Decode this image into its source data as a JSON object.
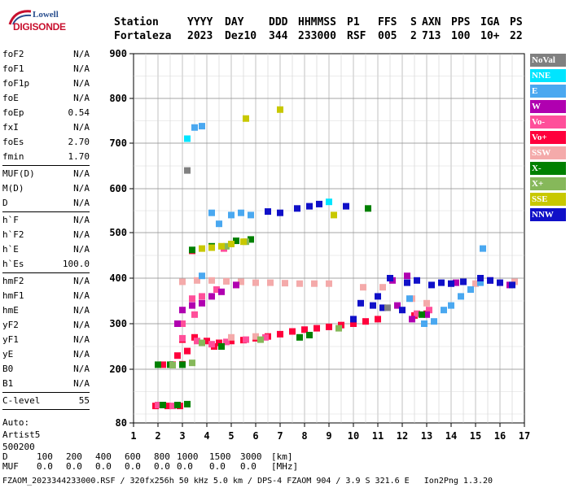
{
  "logo": {
    "line1": "Lowell",
    "line2": "DIGISONDE"
  },
  "header": {
    "labels": [
      "Station",
      "YYYY",
      "DAY",
      "DDD",
      "HHMMSS",
      "P1",
      "FFS",
      "S",
      "AXN",
      "PPS",
      "IGA",
      "PS"
    ],
    "values": [
      "Fortaleza",
      "2023",
      "Dez10",
      "344",
      "233000",
      "RSF",
      "005",
      "2",
      "713",
      "100",
      "10+",
      "22"
    ]
  },
  "params": [
    [
      {
        "label": "foF2",
        "value": "N/A"
      },
      {
        "label": "foF1",
        "value": "N/A"
      },
      {
        "label": "foF1p",
        "value": "N/A"
      },
      {
        "label": "foE",
        "value": "N/A"
      },
      {
        "label": "foEp",
        "value": "0.54"
      },
      {
        "label": "fxI",
        "value": "N/A"
      },
      {
        "label": "foEs",
        "value": "2.70"
      },
      {
        "label": "fmin",
        "value": "1.70"
      }
    ],
    [
      {
        "label": "MUF(D)",
        "value": "N/A"
      },
      {
        "label": "M(D)",
        "value": "N/A"
      },
      {
        "label": "D",
        "value": "N/A"
      }
    ],
    [
      {
        "label": "h`F",
        "value": "N/A"
      },
      {
        "label": "h`F2",
        "value": "N/A"
      },
      {
        "label": "h`E",
        "value": "N/A"
      },
      {
        "label": "h`Es",
        "value": "100.0"
      }
    ],
    [
      {
        "label": "hmF2",
        "value": "N/A"
      },
      {
        "label": "hmF1",
        "value": "N/A"
      },
      {
        "label": "hmE",
        "value": "N/A"
      },
      {
        "label": "yF2",
        "value": "N/A"
      },
      {
        "label": "yF1",
        "value": "N/A"
      },
      {
        "label": "yE",
        "value": "N/A"
      },
      {
        "label": "B0",
        "value": "N/A"
      },
      {
        "label": "B1",
        "value": "N/A"
      }
    ],
    [
      {
        "label": "C-level",
        "value": "55"
      }
    ]
  ],
  "auto": {
    "line1": "Auto:",
    "line2": "Artist5",
    "line3": "500200"
  },
  "legend": [
    {
      "label": "NoVal",
      "color": "#808080"
    },
    {
      "label": "NNE",
      "color": "#00e5ff"
    },
    {
      "label": "E",
      "color": "#4aa8f0"
    },
    {
      "label": "W",
      "color": "#b000b0"
    },
    {
      "label": "Vo-",
      "color": "#ff4f9a"
    },
    {
      "label": "Vo+",
      "color": "#ff003c"
    },
    {
      "label": "SSW",
      "color": "#f4aaaa"
    },
    {
      "label": "X-",
      "color": "#008000"
    },
    {
      "label": "X+",
      "color": "#86b85a"
    },
    {
      "label": "SSE",
      "color": "#c8c800"
    },
    {
      "label": "NNW",
      "color": "#1010c8"
    }
  ],
  "footer": {
    "d_label": "D",
    "d_values": [
      "100",
      "200",
      "400",
      "600",
      "800",
      "1000",
      "1500",
      "3000"
    ],
    "d_unit": "[km]",
    "muf_label": "MUF",
    "muf_values": [
      "0.0",
      "0.0",
      "0.0",
      "0.0",
      "0.0",
      "0.0",
      "0.0",
      "0.0"
    ],
    "muf_unit": "[MHz]",
    "info": "FZAOM_2023344233000.RSF / 320fx256h 50 kHz 5.0 km / DPS-4 FZAOM 904 / 3.9 S 321.6 E   Ion2Png 1.3.20"
  },
  "chart_data": {
    "type": "scatter",
    "title": "",
    "xlabel": "",
    "ylabel": "",
    "xlim": [
      1,
      17
    ],
    "ylim": [
      80,
      900
    ],
    "xticks": [
      "1",
      "2",
      "3",
      "4",
      "5",
      "6",
      "7",
      "8",
      "9",
      "10",
      "11",
      "12",
      "13",
      "14",
      "15",
      "16",
      "17"
    ],
    "yticks": [
      "80",
      "200",
      "300",
      "400",
      "500",
      "600",
      "700",
      "800",
      "900"
    ],
    "grid": true,
    "series": [
      {
        "name": "Vo+",
        "color": "#ff003c",
        "points": [
          [
            2.2,
            210
          ],
          [
            2.6,
            210
          ],
          [
            3.0,
            211
          ],
          [
            1.9,
            118
          ],
          [
            2.4,
            118
          ],
          [
            2.9,
            118
          ],
          [
            3.4,
            460
          ],
          [
            3.0,
            265
          ],
          [
            3.5,
            270
          ],
          [
            4.0,
            262
          ],
          [
            4.5,
            258
          ],
          [
            5.0,
            262
          ],
          [
            5.5,
            264
          ],
          [
            6.0,
            268
          ],
          [
            6.5,
            272
          ],
          [
            7.0,
            277
          ],
          [
            7.5,
            283
          ],
          [
            8.0,
            287
          ],
          [
            8.5,
            290
          ],
          [
            9.0,
            293
          ],
          [
            9.5,
            297
          ],
          [
            10.0,
            300
          ],
          [
            10.5,
            305
          ],
          [
            11.0,
            310
          ],
          [
            12.5,
            318
          ],
          [
            13.0,
            322
          ],
          [
            2.8,
            230
          ],
          [
            3.2,
            240
          ],
          [
            4.3,
            250
          ]
        ]
      },
      {
        "name": "Vo-",
        "color": "#ff4f9a",
        "points": [
          [
            2.0,
            120
          ],
          [
            2.6,
            118
          ],
          [
            3.0,
            268
          ],
          [
            3.6,
            262
          ],
          [
            4.2,
            255
          ],
          [
            4.8,
            260
          ],
          [
            5.6,
            265
          ],
          [
            6.4,
            270
          ],
          [
            3.4,
            355
          ],
          [
            3.8,
            360
          ],
          [
            4.4,
            375
          ],
          [
            5.2,
            385
          ],
          [
            4.7,
            465
          ],
          [
            3.0,
            300
          ],
          [
            3.5,
            320
          ],
          [
            12.6,
            322
          ],
          [
            13.1,
            330
          ]
        ]
      },
      {
        "name": "SSW",
        "color": "#f4aaaa",
        "points": [
          [
            3.0,
            392
          ],
          [
            3.6,
            395
          ],
          [
            4.2,
            395
          ],
          [
            4.8,
            393
          ],
          [
            5.4,
            392
          ],
          [
            6.0,
            390
          ],
          [
            6.6,
            390
          ],
          [
            7.2,
            389
          ],
          [
            7.8,
            388
          ],
          [
            8.4,
            388
          ],
          [
            9.0,
            388
          ],
          [
            10.4,
            380
          ],
          [
            11.2,
            380
          ],
          [
            12.4,
            355
          ],
          [
            13.0,
            345
          ],
          [
            14.0,
            388
          ],
          [
            15.0,
            388
          ],
          [
            16.0,
            390
          ],
          [
            16.6,
            392
          ],
          [
            5.0,
            270
          ],
          [
            6.0,
            272
          ]
        ]
      },
      {
        "name": "W",
        "color": "#b000b0",
        "points": [
          [
            3.0,
            330
          ],
          [
            3.4,
            340
          ],
          [
            3.8,
            345
          ],
          [
            4.2,
            360
          ],
          [
            4.6,
            370
          ],
          [
            5.2,
            385
          ],
          [
            2.8,
            300
          ],
          [
            11.8,
            340
          ],
          [
            12.4,
            310
          ],
          [
            13.0,
            320
          ],
          [
            11.6,
            395
          ],
          [
            12.2,
            405
          ],
          [
            14.2,
            390
          ],
          [
            15.6,
            395
          ],
          [
            16.4,
            385
          ]
        ]
      },
      {
        "name": "X-",
        "color": "#008000",
        "points": [
          [
            2.0,
            210
          ],
          [
            2.5,
            210
          ],
          [
            3.0,
            210
          ],
          [
            2.2,
            120
          ],
          [
            2.8,
            120
          ],
          [
            3.2,
            122
          ],
          [
            3.4,
            462
          ],
          [
            4.2,
            470
          ],
          [
            5.2,
            482
          ],
          [
            5.8,
            485
          ],
          [
            4.6,
            250
          ],
          [
            7.8,
            270
          ],
          [
            8.2,
            275
          ],
          [
            10.6,
            555
          ],
          [
            12.8,
            320
          ]
        ]
      },
      {
        "name": "X+",
        "color": "#86b85a",
        "points": [
          [
            2.6,
            209
          ],
          [
            3.4,
            214
          ],
          [
            4.8,
            470
          ],
          [
            5.6,
            480
          ],
          [
            3.8,
            258
          ],
          [
            6.2,
            265
          ],
          [
            9.4,
            290
          ]
        ]
      },
      {
        "name": "SSE",
        "color": "#c8c800",
        "points": [
          [
            3.8,
            465
          ],
          [
            4.2,
            467
          ],
          [
            4.6,
            470
          ],
          [
            5.0,
            475
          ],
          [
            5.5,
            480
          ],
          [
            5.6,
            755
          ],
          [
            7.0,
            775
          ],
          [
            9.2,
            540
          ]
        ]
      },
      {
        "name": "E",
        "color": "#4aa8f0",
        "points": [
          [
            3.5,
            735
          ],
          [
            3.8,
            738
          ],
          [
            4.2,
            545
          ],
          [
            4.5,
            520
          ],
          [
            5.0,
            540
          ],
          [
            5.4,
            545
          ],
          [
            5.8,
            540
          ],
          [
            12.3,
            355
          ],
          [
            12.9,
            300
          ],
          [
            13.3,
            305
          ],
          [
            13.7,
            330
          ],
          [
            14.0,
            340
          ],
          [
            14.4,
            360
          ],
          [
            14.8,
            375
          ],
          [
            15.2,
            390
          ],
          [
            15.3,
            465
          ],
          [
            3.8,
            405
          ]
        ]
      },
      {
        "name": "NNE",
        "color": "#00e5ff",
        "points": [
          [
            3.2,
            710
          ],
          [
            9.0,
            570
          ]
        ]
      },
      {
        "name": "NNW",
        "color": "#1010c8",
        "points": [
          [
            6.5,
            548
          ],
          [
            7.0,
            545
          ],
          [
            7.7,
            555
          ],
          [
            8.2,
            560
          ],
          [
            8.6,
            565
          ],
          [
            9.7,
            560
          ],
          [
            10.3,
            345
          ],
          [
            10.8,
            340
          ],
          [
            11.2,
            335
          ],
          [
            10.0,
            310
          ],
          [
            11.0,
            360
          ],
          [
            11.5,
            400
          ],
          [
            12.2,
            390
          ],
          [
            12.6,
            395
          ],
          [
            13.2,
            385
          ],
          [
            13.6,
            390
          ],
          [
            14.0,
            388
          ],
          [
            14.5,
            392
          ],
          [
            15.2,
            400
          ],
          [
            15.6,
            395
          ],
          [
            16.0,
            390
          ],
          [
            16.5,
            385
          ],
          [
            12.0,
            330
          ]
        ]
      },
      {
        "name": "NoVal",
        "color": "#808080",
        "points": [
          [
            3.2,
            640
          ],
          [
            11.4,
            335
          ]
        ]
      }
    ]
  }
}
